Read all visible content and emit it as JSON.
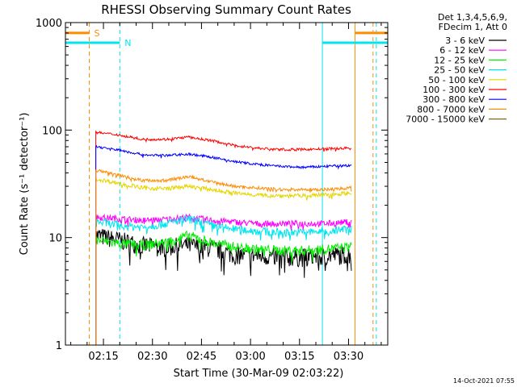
{
  "chart_data": {
    "type": "line",
    "title": "RHESSI Observing Summary Count Rates",
    "xlabel": "Start Time (30-Mar-09 02:03:22)",
    "ylabel": "Count Rate (s⁻¹ detector⁻¹)",
    "yscale": "log",
    "ylim": [
      1,
      1000
    ],
    "xlim": [
      "02:03:22",
      "03:42:00"
    ],
    "yticks": [
      "1",
      "10",
      "100",
      "1000"
    ],
    "xticks": [
      "02:15",
      "02:30",
      "02:45",
      "03:00",
      "03:15",
      "03:30"
    ],
    "grid": false,
    "legend_position": "right",
    "legend_header": [
      "Det 1,3,4,5,6,9,",
      "FDecim 1, Att 0"
    ],
    "footer": "14-Oct-2021 07:55",
    "data_window": [
      "02:12:40",
      "03:31:00"
    ],
    "x_times": [
      "02:13",
      "02:20",
      "02:27",
      "02:34",
      "02:41",
      "02:48",
      "02:55",
      "03:02",
      "03:09",
      "03:16",
      "03:23",
      "03:30"
    ],
    "series": [
      {
        "name": "3 - 6 keV",
        "color": "#000000",
        "noise": 0.09,
        "values": [
          10.5,
          9.5,
          8.5,
          8.2,
          8.5,
          8.0,
          7.0,
          6.8,
          6.6,
          6.6,
          6.8,
          7.0
        ]
      },
      {
        "name": "6 - 12 keV",
        "color": "#ff00ff",
        "noise": 0.03,
        "values": [
          15.5,
          15,
          14.5,
          14.8,
          15.5,
          14.5,
          14,
          13.5,
          13.5,
          13.5,
          13.5,
          14
        ]
      },
      {
        "name": "12 - 25 keV",
        "color": "#00ee00",
        "noise": 0.05,
        "values": [
          9.5,
          8.8,
          8.5,
          9.0,
          10.5,
          9.0,
          8.2,
          7.8,
          7.6,
          7.6,
          7.8,
          8.2
        ]
      },
      {
        "name": "25 - 50 keV",
        "color": "#00e5ee",
        "noise": 0.04,
        "values": [
          14,
          13,
          12.5,
          13.5,
          15,
          13,
          12,
          11.5,
          11.2,
          11.2,
          11.5,
          12
        ]
      },
      {
        "name": "50 - 100 keV",
        "color": "#e5d400",
        "noise": 0.02,
        "values": [
          35,
          32,
          29,
          28.5,
          30,
          28,
          26,
          25,
          24.5,
          24.5,
          25,
          26
        ]
      },
      {
        "name": "100 - 300 keV",
        "color": "#ff0000",
        "noise": 0.012,
        "values": [
          95,
          90,
          82,
          82,
          86,
          80,
          72,
          68,
          66,
          66,
          67,
          68
        ]
      },
      {
        "name": "300 - 800 keV",
        "color": "#0000ff",
        "noise": 0.012,
        "values": [
          70,
          65,
          59,
          58,
          60,
          56,
          51,
          48,
          46,
          45,
          46,
          47
        ]
      },
      {
        "name": "800 - 7000 keV",
        "color": "#ff8c00",
        "noise": 0.015,
        "values": [
          42,
          38,
          34,
          34,
          37,
          33,
          30,
          29,
          28,
          28,
          28,
          29
        ]
      },
      {
        "name": "7000 - 15000 keV",
        "color": "#8b6914",
        "noise": 0,
        "values": []
      }
    ],
    "markers": [
      {
        "label": "S",
        "color": "#ff8c00",
        "side": "left",
        "line_time": "02:10:40",
        "value": 800
      },
      {
        "label": "N",
        "color": "#00e5ee",
        "side": "left",
        "line_time": "02:20:00",
        "value": 650
      },
      {
        "label": "",
        "color": "#ff8c00",
        "side": "right",
        "line_time": "03:32:00",
        "value": 800
      },
      {
        "label": "",
        "color": "#00e5ee",
        "side": "right",
        "line_time": "03:22:00",
        "value": 650
      }
    ],
    "marker_lines": [
      {
        "color": "#00e5ee",
        "time": "02:03:22",
        "style": "solid"
      },
      {
        "color": "#ff8c00",
        "time": "02:10:40",
        "style": "dashed"
      },
      {
        "color": "#00e5ee",
        "time": "02:20:00",
        "style": "dashed"
      },
      {
        "color": "#00e5ee",
        "time": "03:22:00",
        "style": "solid"
      },
      {
        "color": "#ff8c00",
        "time": "03:32:00",
        "style": "solid"
      },
      {
        "color": "#ff8c00",
        "time": "03:37:30",
        "style": "dashed"
      },
      {
        "color": "#00e5ee",
        "time": "03:38:30",
        "style": "dashed"
      }
    ]
  }
}
